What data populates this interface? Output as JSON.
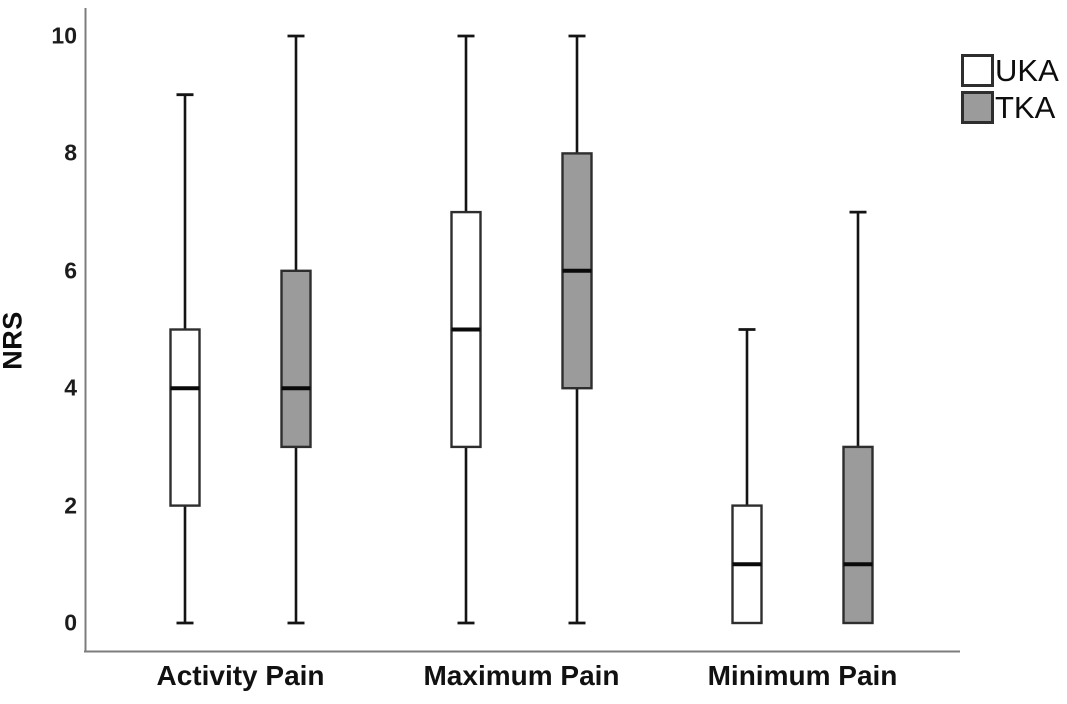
{
  "chart_data": {
    "type": "boxplot",
    "title": "",
    "xlabel": "",
    "ylabel": "NRS",
    "ylim": [
      0,
      10
    ],
    "yticks": [
      "0",
      "2",
      "4",
      "6",
      "8",
      "10"
    ],
    "ytick_values": [
      0,
      2,
      4,
      6,
      8,
      10
    ],
    "categories": [
      "Activity Pain",
      "Maximum Pain",
      "Minimum Pain"
    ],
    "grid": false,
    "legend_position": "top-right",
    "series": [
      {
        "name": "UKA",
        "fill": "#ffffff",
        "boxes": [
          {
            "category": "Activity Pain",
            "min": 0,
            "q1": 2,
            "median": 4,
            "q3": 5,
            "max": 9
          },
          {
            "category": "Maximum Pain",
            "min": 0,
            "q1": 3,
            "median": 5,
            "q3": 7,
            "max": 10
          },
          {
            "category": "Minimum Pain",
            "min": 0,
            "q1": 0,
            "median": 1,
            "q3": 2,
            "max": 5
          }
        ]
      },
      {
        "name": "TKA",
        "fill": "#9b9b9b",
        "boxes": [
          {
            "category": "Activity Pain",
            "min": 0,
            "q1": 3,
            "median": 4,
            "q3": 6,
            "max": 10
          },
          {
            "category": "Maximum Pain",
            "min": 0,
            "q1": 4,
            "median": 6,
            "q3": 8,
            "max": 10
          },
          {
            "category": "Minimum Pain",
            "min": 0,
            "q1": 0,
            "median": 1,
            "q3": 3,
            "max": 7
          }
        ]
      }
    ],
    "colors": {
      "uka_fill": "#ffffff",
      "tka_fill": "#9b9b9b",
      "box_border": "#2e2e2e",
      "whisker": "#141414",
      "median": "#0a0a0a",
      "axis": "#7d7d7d",
      "background": "#ffffff",
      "text": "#111111"
    }
  }
}
